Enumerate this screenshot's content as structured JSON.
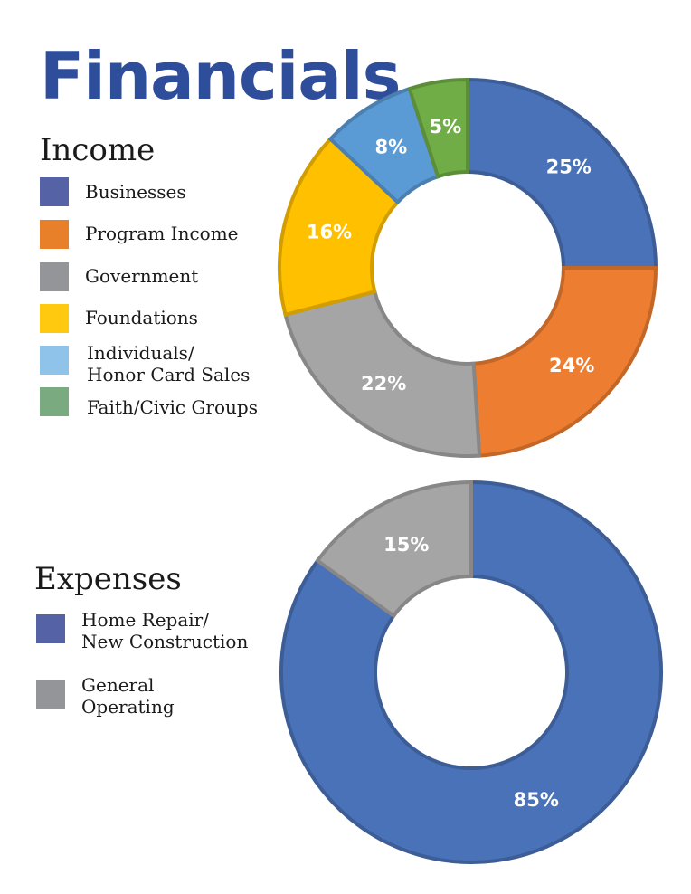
{
  "title": "Financials",
  "income": {
    "heading": "Income",
    "legend": [
      {
        "label": "Businesses",
        "color": "#5563a6"
      },
      {
        "label": "Program Income",
        "color": "#e8802a"
      },
      {
        "label": "Government",
        "color": "#939598"
      },
      {
        "label": "Foundations",
        "color": "#fec90f"
      },
      {
        "label": "Individuals/\nHonor Card Sales",
        "color": "#8fc3ea"
      },
      {
        "label": "Faith/Civic Groups",
        "color": "#7aaa80"
      }
    ]
  },
  "expenses": {
    "heading": "Expenses",
    "legend": [
      {
        "label": "Home Repair/\nNew Construction",
        "color": "#5563a6"
      },
      {
        "label": "General\nOperating",
        "color": "#939598"
      }
    ]
  },
  "chart_data": [
    {
      "type": "pie",
      "title": "Income",
      "donut": true,
      "categories": [
        "Businesses",
        "Program Income",
        "Government",
        "Foundations",
        "Individuals/Honor Card Sales",
        "Faith/Civic Groups"
      ],
      "values": [
        25,
        24,
        22,
        16,
        8,
        5
      ],
      "labels": [
        "25%",
        "24%",
        "22%",
        "16%",
        "8%",
        "5%"
      ],
      "colors": [
        "#4a72b8",
        "#ed7d31",
        "#a5a5a5",
        "#ffc000",
        "#5b9bd5",
        "#70ad47"
      ],
      "unit": "%"
    },
    {
      "type": "pie",
      "title": "Expenses",
      "donut": true,
      "categories": [
        "Home Repair/New Construction",
        "General Operating"
      ],
      "values": [
        85,
        15
      ],
      "labels": [
        "85%",
        "15%"
      ],
      "colors": [
        "#4a72b8",
        "#a5a5a5"
      ],
      "unit": "%"
    }
  ]
}
